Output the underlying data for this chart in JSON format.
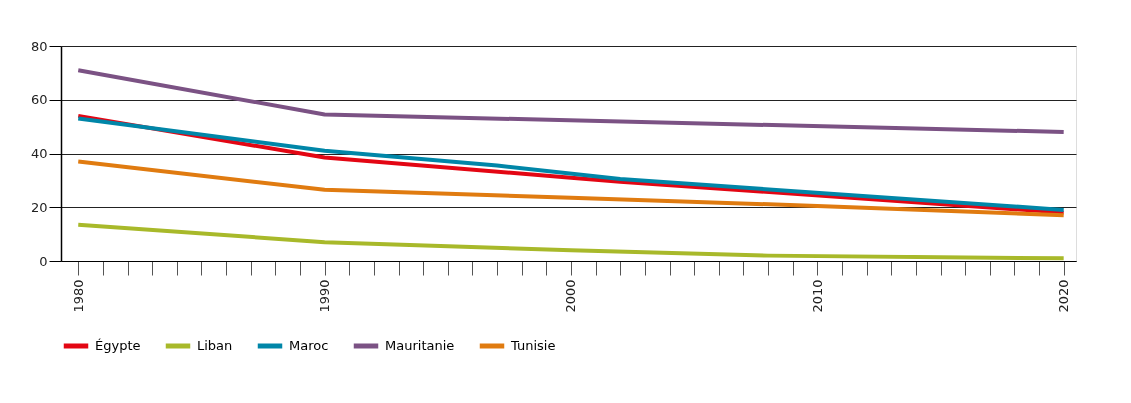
{
  "chart_data": {
    "type": "line",
    "xlim": [
      1979.3,
      2020.5
    ],
    "xticks": [
      1980,
      {
        "value": 1981,
        "label": null
      },
      {
        "value": 1982,
        "label": null
      },
      {
        "value": 1983,
        "label": null
      },
      {
        "value": 1984,
        "label": null
      },
      {
        "value": 1985,
        "label": null
      },
      {
        "value": 1986,
        "label": null
      },
      {
        "value": 1987,
        "label": null
      },
      {
        "value": 1988,
        "label": null
      },
      {
        "value": 1989,
        "label": null
      },
      1990,
      {
        "value": 1991,
        "label": null
      },
      {
        "value": 1992,
        "label": null
      },
      {
        "value": 1993,
        "label": null
      },
      {
        "value": 1994,
        "label": null
      },
      {
        "value": 1995,
        "label": null
      },
      {
        "value": 1996,
        "label": null
      },
      {
        "value": 1997,
        "label": null
      },
      {
        "value": 1998,
        "label": null
      },
      {
        "value": 1999,
        "label": null
      },
      2000,
      {
        "value": 2001,
        "label": null
      },
      {
        "value": 2002,
        "label": null
      },
      {
        "value": 2003,
        "label": null
      },
      {
        "value": 2004,
        "label": null
      },
      {
        "value": 2005,
        "label": null
      },
      {
        "value": 2006,
        "label": null
      },
      {
        "value": 2007,
        "label": null
      },
      {
        "value": 2008,
        "label": null
      },
      {
        "value": 2009,
        "label": null
      },
      2010,
      {
        "value": 2011,
        "label": null
      },
      {
        "value": 2012,
        "label": null
      },
      {
        "value": 2013,
        "label": null
      },
      {
        "value": 2014,
        "label": null
      },
      {
        "value": 2015,
        "label": null
      },
      {
        "value": 2016,
        "label": null
      },
      {
        "value": 2017,
        "label": null
      },
      {
        "value": 2018,
        "label": null
      },
      {
        "value": 2019,
        "label": null
      },
      2020
    ],
    "ylim": [
      0,
      80
    ],
    "yticks": [
      0,
      20,
      40,
      60,
      80
    ],
    "grid": "y",
    "legend": "bottom",
    "marker": "none",
    "line_style": "solid",
    "series": [
      {
        "name": "Égypte",
        "color": "#e30613",
        "x": [
          1980,
          1990,
          2000,
          2002,
          2020
        ],
        "values": [
          54,
          38.5,
          31,
          29.5,
          18
        ]
      },
      {
        "name": "Liban",
        "color": "#a8b92a",
        "x": [
          1980,
          1990,
          2000,
          2008,
          2020
        ],
        "values": [
          13.5,
          7,
          4,
          2,
          1
        ]
      },
      {
        "name": "Maroc",
        "color": "#0086a8",
        "x": [
          1980,
          1990,
          1997,
          2002,
          2020
        ],
        "values": [
          53,
          41,
          35.5,
          30.5,
          19
        ]
      },
      {
        "name": "Mauritanie",
        "color": "#7b5284",
        "x": [
          1980,
          1990,
          2020
        ],
        "values": [
          71,
          54.5,
          48
        ]
      },
      {
        "name": "Tunisie",
        "color": "#e07b10",
        "x": [
          1980,
          1990,
          2000,
          2010,
          2020
        ],
        "values": [
          37,
          26.5,
          23.5,
          20.5,
          17
        ]
      }
    ]
  }
}
